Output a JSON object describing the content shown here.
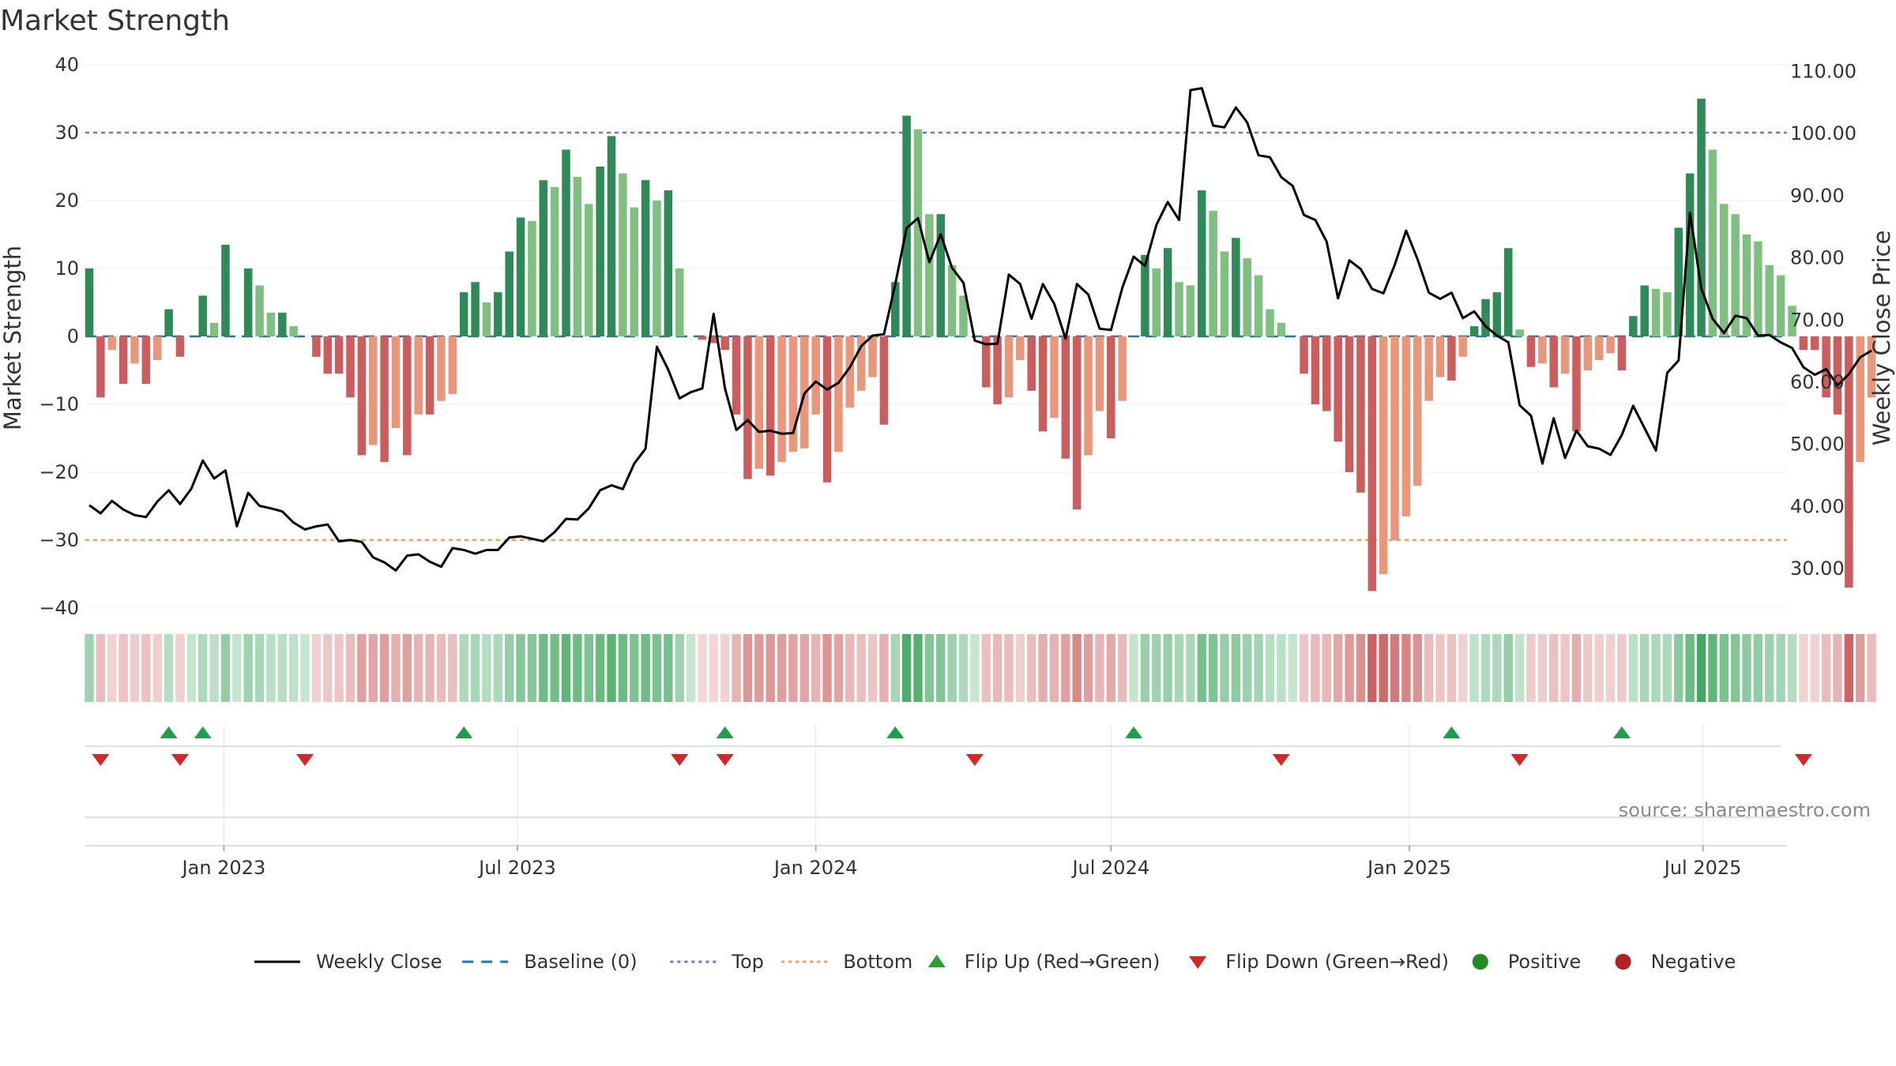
{
  "chart_data": {
    "type": "bar",
    "title": "Market Strength",
    "ylabel": "Market Strength",
    "y2label": "Weekly Close Price",
    "ylim": [
      -40,
      40
    ],
    "y2lim": [
      20.0,
      110.0
    ],
    "yticks": [
      "40",
      "30",
      "20",
      "10",
      "0",
      "−10",
      "−20",
      "−30",
      "−40"
    ],
    "y2ticks": [
      "110.00",
      "100.00",
      "90.00",
      "80.00",
      "70.00",
      "60.00",
      "50.00",
      "40.00",
      "30.00"
    ],
    "xticks": [
      "Jan 2023",
      "Jul 2023",
      "Jan 2024",
      "Jul 2024",
      "Jan 2025",
      "Jul 2025"
    ],
    "x_start": "2022-10-10",
    "week_step_days": 7,
    "top_level": 30,
    "bottom_level": -30,
    "strength_values": [
      10,
      -9,
      -2,
      -7,
      -4,
      -7,
      -3.5,
      4,
      -3,
      0,
      6,
      2,
      13.5,
      0,
      10,
      7.5,
      3.5,
      3.5,
      1.5,
      0,
      -3,
      -5.5,
      -5.5,
      -9,
      -17.5,
      -16,
      -18.5,
      -13.5,
      -17.5,
      -11.5,
      -11.5,
      -9.5,
      -8.5,
      6.5,
      8,
      5,
      6.5,
      12.5,
      17.5,
      17,
      23,
      22,
      27.5,
      23.5,
      19.5,
      25,
      29.5,
      24,
      19,
      23,
      20,
      21.5,
      10,
      0,
      -0.5,
      -1,
      -2,
      -11.5,
      -21,
      -19.5,
      -20.5,
      -18.5,
      -17,
      -16.5,
      -11.5,
      -21.5,
      -17,
      -10.5,
      -8,
      -6,
      -13,
      8,
      32.5,
      30.5,
      18,
      18,
      10.5,
      6,
      0,
      -7.5,
      -10,
      -9,
      -3.5,
      -8,
      -14,
      -12,
      -18,
      -25.5,
      -17.5,
      -11,
      -15,
      -9.5,
      0,
      12,
      10,
      13,
      8,
      7.5,
      21.5,
      18.5,
      12.5,
      14.5,
      11.5,
      9,
      4,
      2,
      0,
      -5.5,
      -10,
      -11,
      -15.5,
      -20,
      -23,
      -37.5,
      -35,
      -30,
      -26.5,
      -22,
      -9.5,
      -6,
      -6.5,
      -3,
      1.5,
      5.5,
      6.5,
      13,
      1,
      -4.5,
      -4,
      -7.5,
      -5.5,
      -14,
      -5,
      -3.5,
      -2.5,
      -5,
      3,
      7.5,
      7,
      6.5,
      16,
      24,
      35,
      27.5,
      19.5,
      18,
      15,
      14,
      10.5,
      9,
      4.5,
      -2,
      -2,
      -9,
      -11.5,
      -37,
      -18.5,
      -9
    ],
    "close_values": [
      40.2,
      38.9,
      40.9,
      39.5,
      38.6,
      38.3,
      40.8,
      42.6,
      40.4,
      42.9,
      47.4,
      44.5,
      45.8,
      36.8,
      42.2,
      40.1,
      39.7,
      39.2,
      37.4,
      36.3,
      36.8,
      37.1,
      34.4,
      34.6,
      34.3,
      31.8,
      31.0,
      29.7,
      32.1,
      32.3,
      31.1,
      30.3,
      33.3,
      33.0,
      32.4,
      33.0,
      33.0,
      35.0,
      35.2,
      34.8,
      34.4,
      35.9,
      38.0,
      37.9,
      39.7,
      42.6,
      43.4,
      42.8,
      46.9,
      49.3,
      65.7,
      62.0,
      57.4,
      58.4,
      59.0,
      71.0,
      59.0,
      52.3,
      53.9,
      52.0,
      52.2,
      51.7,
      51.8,
      58.2,
      60.1,
      58.8,
      59.9,
      62.4,
      65.8,
      67.5,
      67.7,
      75.8,
      84.8,
      86.4,
      79.3,
      83.8,
      78.4,
      76.0,
      66.7,
      66.1,
      66.2,
      77.3,
      75.8,
      70.2,
      75.8,
      72.6,
      67.0,
      75.8,
      74.1,
      68.6,
      68.4,
      75.2,
      80.2,
      78.7,
      85.3,
      89.0,
      86.1,
      107.0,
      107.3,
      101.3,
      101.0,
      104.2,
      101.8,
      96.5,
      96.2,
      93.0,
      91.6,
      86.9,
      86.1,
      82.6,
      73.5,
      79.6,
      78.2,
      75.0,
      74.3,
      78.9,
      84.4,
      79.8,
      74.4,
      73.4,
      74.4,
      70.3,
      71.4,
      69.0,
      67.5,
      66.4,
      56.3,
      54.6,
      46.9,
      54.2,
      47.8,
      52.2,
      49.7,
      49.3,
      48.3,
      51.5,
      56.2,
      52.6,
      49.0,
      61.5,
      63.5,
      87.3,
      75.1,
      70.2,
      67.9,
      70.7,
      70.3,
      67.5,
      67.6,
      66.4,
      65.5,
      62.4,
      61.2,
      62.1,
      59.5,
      61.3,
      64.0,
      65.1
    ],
    "heat_values": [
      10,
      -9,
      -2,
      -7,
      -4,
      -7,
      -3.5,
      4,
      -3,
      0,
      6,
      2,
      13.5,
      0,
      10,
      7.5,
      3.5,
      3.5,
      1.5,
      0,
      -3,
      -5.5,
      -5.5,
      -9,
      -17.5,
      -16,
      -18.5,
      -13.5,
      -17.5,
      -11.5,
      -11.5,
      -9.5,
      -8.5,
      6.5,
      8,
      5,
      6.5,
      12.5,
      17.5,
      17,
      23,
      22,
      27.5,
      23.5,
      19.5,
      25,
      29.5,
      24,
      19,
      23,
      20,
      21.5,
      10,
      0,
      -0.5,
      -1,
      -2,
      -11.5,
      -21,
      -19.5,
      -20.5,
      -18.5,
      -17,
      -16.5,
      -11.5,
      -21.5,
      -17,
      -10.5,
      -8,
      -6,
      -13,
      8,
      32.5,
      30.5,
      18,
      18,
      10.5,
      6,
      0,
      -7.5,
      -10,
      -9,
      -3.5,
      -8,
      -14,
      -12,
      -18,
      -25.5,
      -17.5,
      -11,
      -15,
      -9.5,
      0,
      12,
      10,
      13,
      8,
      7.5,
      21.5,
      18.5,
      12.5,
      14.5,
      11.5,
      9,
      4,
      2,
      0,
      -5.5,
      -10,
      -11,
      -15.5,
      -20,
      -23,
      -37.5,
      -35,
      -30,
      -26.5,
      -22,
      -9.5,
      -6,
      -6.5,
      -3,
      1.5,
      5.5,
      6.5,
      13,
      1,
      -4.5,
      -4,
      -7.5,
      -5.5,
      -14,
      -5,
      -3.5,
      -2.5,
      -5,
      3,
      7.5,
      7,
      6.5,
      16,
      24,
      35,
      27.5,
      19.5,
      18,
      15,
      14,
      10.5,
      9,
      4.5,
      -2,
      -2,
      -9,
      -11.5,
      -37,
      -18.5,
      -9
    ],
    "flip_up_indices": [
      7,
      10,
      33,
      56,
      71,
      92,
      120,
      135
    ],
    "flip_down_indices": [
      1,
      8,
      19,
      52,
      56,
      78,
      105,
      126,
      151
    ],
    "source": "source: sharemaestro.com",
    "legend": [
      {
        "label": "Weekly Close",
        "kind": "line",
        "color": "#000000"
      },
      {
        "label": "Baseline (0)",
        "kind": "dash",
        "color": "#1f77b4"
      },
      {
        "label": "Top",
        "kind": "dot",
        "color": "#9467bd"
      },
      {
        "label": "Bottom",
        "kind": "dot",
        "color": "#f0a050"
      },
      {
        "label": "Flip Up (Red→Green)",
        "kind": "triangle-up",
        "color": "#2ca02c"
      },
      {
        "label": "Flip Down (Green→Red)",
        "kind": "triangle-down",
        "color": "#d62728"
      },
      {
        "label": "Positive",
        "kind": "circle",
        "color": "#228b22"
      },
      {
        "label": "Negative",
        "kind": "circle",
        "color": "#b22222"
      }
    ],
    "colors": {
      "pos_strong": "#2e8b57",
      "pos_light": "#7fbf7f",
      "neg_strong": "#cd5c5c",
      "neg_light": "#e9967a",
      "close_line": "#000000",
      "baseline": "#1f77b4",
      "top_line": "#9467bd",
      "bottom_line": "#f0a050",
      "flip_up": "#1f9e4a",
      "flip_down": "#d62728"
    }
  }
}
